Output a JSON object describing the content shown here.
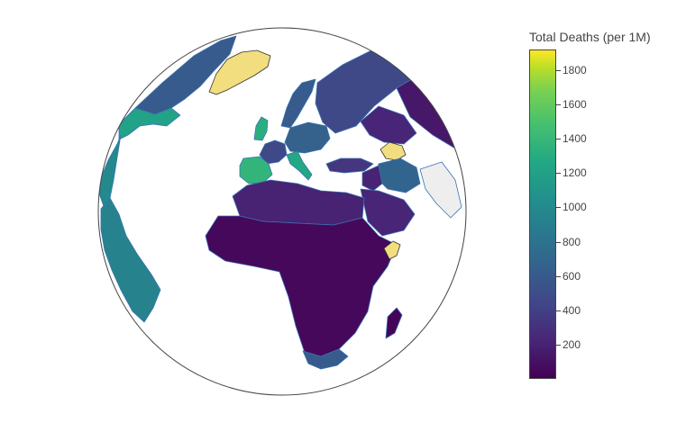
{
  "map": {
    "projection": "orthographic",
    "center": "Africa / Europe",
    "colorscale": "viridis",
    "colors": {
      "ocean": "#ffffff",
      "globe_outline": "#444444",
      "country_border": "#3b72b4",
      "lowest": "#440154",
      "highest": "#f2de7f"
    },
    "regions": [
      {
        "name": "Greenland",
        "value": 1900
      },
      {
        "name": "Northern Russia",
        "value": 420
      },
      {
        "name": "Eastern Russia",
        "value": 120
      },
      {
        "name": "Kazakhstan",
        "value": 200
      },
      {
        "name": "Georgia",
        "value": 1900
      },
      {
        "name": "Iran",
        "value": 620
      },
      {
        "name": "Iraq",
        "value": 180
      },
      {
        "name": "Saudi Arabia",
        "value": 200
      },
      {
        "name": "Turkey",
        "value": 300
      },
      {
        "name": "United Kingdom",
        "value": 1200
      },
      {
        "name": "Spain",
        "value": 1250
      },
      {
        "name": "France",
        "value": 420
      },
      {
        "name": "Italy",
        "value": 1150
      },
      {
        "name": "Scandinavia",
        "value": 550
      },
      {
        "name": "Central Europe",
        "value": 600
      },
      {
        "name": "North Africa",
        "value": 180
      },
      {
        "name": "Sub-Saharan Africa",
        "value": 40
      },
      {
        "name": "South Africa",
        "value": 550
      },
      {
        "name": "Somalia",
        "value": 1900
      },
      {
        "name": "Madagascar",
        "value": 20
      },
      {
        "name": "Canada",
        "value": 550
      },
      {
        "name": "United States",
        "value": 1100
      },
      {
        "name": "Central America",
        "value": 900
      },
      {
        "name": "South America",
        "value": 850
      }
    ]
  },
  "colorbar": {
    "title": "Total Deaths (per 1M)",
    "min": 0,
    "max": 1920,
    "ticks": [
      "1800",
      "1600",
      "1400",
      "1200",
      "1000",
      "800",
      "600",
      "400",
      "200"
    ],
    "tick_values": [
      1800,
      1600,
      1400,
      1200,
      1000,
      800,
      600,
      400,
      200
    ]
  }
}
